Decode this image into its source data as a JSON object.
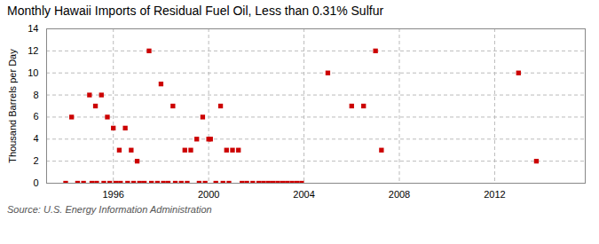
{
  "chart_data": {
    "type": "scatter",
    "title": "Monthly Hawaii Imports of Residual Fuel Oil, Less than 0.31% Sulfur",
    "ylabel": "Thousand Barrels per Day",
    "annotations": [
      "Source: U.S. Energy Information Administration"
    ],
    "x": [
      1994.25,
      1995.0,
      1995.25,
      1995.5,
      1995.75,
      1996.0,
      1996.25,
      1996.5,
      1996.75,
      1997.0,
      1997.5,
      1998.0,
      1998.5,
      1999.0,
      1999.25,
      1999.5,
      1999.75,
      2000.0,
      2000.08,
      2000.5,
      2000.75,
      2001.0,
      2001.25,
      2005.0,
      2006.0,
      2006.5,
      2007.0,
      2007.25,
      2013.0,
      2013.75,
      1994.0,
      1994.5,
      1994.75,
      1995.1,
      1995.3,
      1995.6,
      1995.85,
      1996.1,
      1996.3,
      1996.6,
      1996.85,
      1997.1,
      1997.3,
      1997.6,
      1997.85,
      1998.1,
      1998.3,
      1998.6,
      1998.85,
      1999.1,
      1999.6,
      1999.85,
      2000.3,
      2000.6,
      2000.85,
      2001.4,
      2001.6,
      2001.85,
      2002.1,
      2002.3,
      2002.5,
      2002.7,
      2002.9,
      2003.1,
      2003.3,
      2003.5,
      2003.7,
      2003.9
    ],
    "values": [
      6.0,
      8.0,
      7.0,
      8.0,
      6.0,
      5.0,
      3.0,
      5.0,
      3.0,
      2.0,
      12.0,
      9.0,
      7.0,
      3.0,
      3.0,
      4.0,
      6.0,
      4.0,
      4.0,
      7.0,
      3.0,
      3.0,
      3.0,
      10.0,
      7.0,
      7.0,
      12.0,
      3.0,
      10.0,
      2.0,
      0.0,
      0.0,
      0.0,
      0.0,
      0.0,
      0.0,
      0.0,
      0.0,
      0.0,
      0.0,
      0.0,
      0.0,
      0.0,
      0.0,
      0.0,
      0.0,
      0.0,
      0.0,
      0.0,
      0.0,
      0.0,
      0.0,
      0.0,
      0.0,
      0.0,
      0.0,
      0.0,
      0.0,
      0.0,
      0.0,
      0.0,
      0.0,
      0.0,
      0.0,
      0.0,
      0.0,
      0.0,
      0.0
    ],
    "color": "#cc0000",
    "marker": "square",
    "xlim": [
      1993.2,
      2015.8
    ],
    "xticks": [
      1996,
      2000,
      2004,
      2008,
      2012
    ],
    "ylim": [
      0,
      14
    ],
    "yticks": [
      0,
      2,
      4,
      6,
      8,
      10,
      12,
      14
    ],
    "grid": true
  }
}
